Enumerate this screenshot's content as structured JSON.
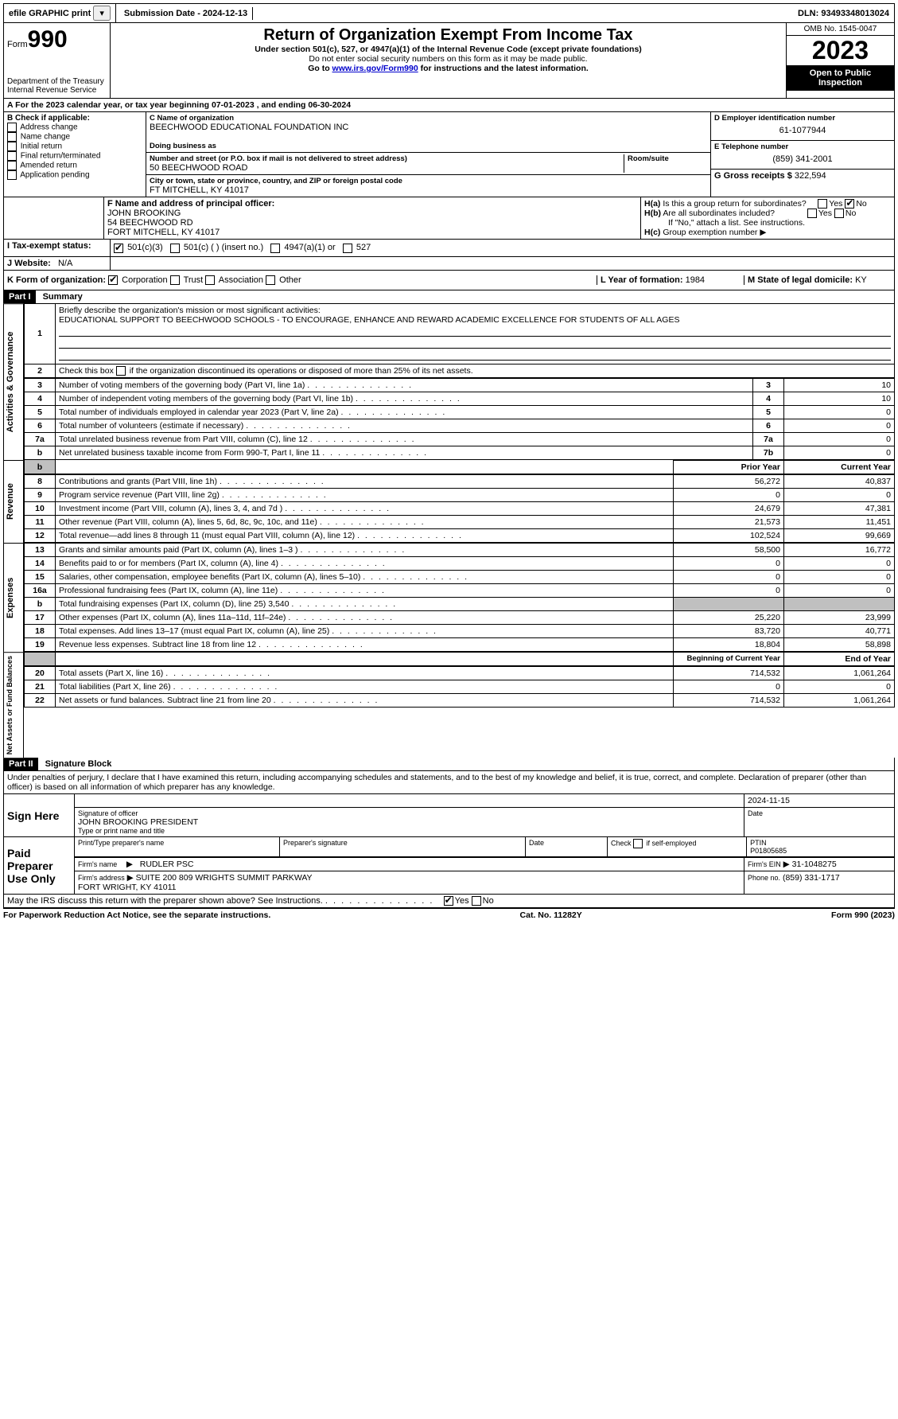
{
  "topbar": {
    "efile": "efile GRAPHIC print",
    "submission": "Submission Date - 2024-12-13",
    "dln": "DLN: 93493348013024"
  },
  "header": {
    "form_word": "Form",
    "form_num": "990",
    "dept": "Department of the Treasury\nInternal Revenue Service",
    "title": "Return of Organization Exempt From Income Tax",
    "subtitle": "Under section 501(c), 527, or 4947(a)(1) of the Internal Revenue Code (except private foundations)",
    "note1": "Do not enter social security numbers on this form as it may be made public.",
    "note2_pre": "Go to ",
    "note2_link": "www.irs.gov/Form990",
    "note2_post": " for instructions and the latest information.",
    "omb": "OMB No. 1545-0047",
    "year": "2023",
    "inspection": "Open to Public Inspection"
  },
  "period": {
    "prefix": "A For the 2023 calendar year, or tax year beginning ",
    "begin": "07-01-2023",
    "mid": " , and ending ",
    "end": "06-30-2024"
  },
  "boxB": {
    "title": "B Check if applicable:",
    "opts": [
      "Address change",
      "Name change",
      "Initial return",
      "Final return/terminated",
      "Amended return",
      "Application pending"
    ]
  },
  "boxC": {
    "name_label": "C Name of organization",
    "name": "BEECHWOOD EDUCATIONAL FOUNDATION INC",
    "dba_label": "Doing business as",
    "street_label": "Number and street (or P.O. box if mail is not delivered to street address)",
    "room_label": "Room/suite",
    "street": "50 BEECHWOOD ROAD",
    "city_label": "City or town, state or province, country, and ZIP or foreign postal code",
    "city": "FT MITCHELL, KY  41017"
  },
  "boxD": {
    "label": "D Employer identification number",
    "ein": "61-1077944"
  },
  "boxE": {
    "label": "E Telephone number",
    "phone": "(859) 341-2001"
  },
  "boxG": {
    "label": "G Gross receipts $",
    "amount": "322,594"
  },
  "boxF": {
    "label": "F Name and address of principal officer:",
    "name": "JOHN BROOKING",
    "addr1": "54 BEECHWOOD RD",
    "addr2": "FORT MITCHELL, KY  41017"
  },
  "boxH": {
    "a_label": "H(a)  Is this a group return for subordinates?",
    "b_label": "H(b)  Are all subordinates included?",
    "b_note": "If \"No,\" attach a list. See instructions.",
    "c_label": "H(c)  Group exemption number ",
    "yes": "Yes",
    "no": "No"
  },
  "boxI": {
    "label": "I   Tax-exempt status:",
    "o1": "501(c)(3)",
    "o2": "501(c) (  ) (insert no.)",
    "o3": "4947(a)(1) or",
    "o4": "527"
  },
  "boxJ": {
    "label": "J   Website:",
    "val": "N/A"
  },
  "boxK": {
    "label": "K Form of organization:",
    "opts": [
      "Corporation",
      "Trust",
      "Association",
      "Other"
    ]
  },
  "boxL": {
    "label": "L Year of formation:",
    "val": "1984"
  },
  "boxM": {
    "label": "M State of legal domicile:",
    "val": "KY"
  },
  "part1": {
    "header": "Part I",
    "title": "Summary",
    "side_ag": "Activities & Governance",
    "side_rev": "Revenue",
    "side_exp": "Expenses",
    "side_net": "Net Assets or Fund Balances",
    "l1_label": "Briefly describe the organization's mission or most significant activities:",
    "l1_text": "EDUCATIONAL SUPPORT TO BEECHWOOD SCHOOLS - TO ENCOURAGE, ENHANCE AND REWARD ACADEMIC EXCELLENCE FOR STUDENTS OF ALL AGES",
    "l2": "Check this box        if the organization discontinued its operations or disposed of more than 25% of its net assets.",
    "rows_ag": [
      {
        "n": "3",
        "t": "Number of voting members of the governing body (Part VI, line 1a)",
        "bn": "3",
        "v": "10"
      },
      {
        "n": "4",
        "t": "Number of independent voting members of the governing body (Part VI, line 1b)",
        "bn": "4",
        "v": "10"
      },
      {
        "n": "5",
        "t": "Total number of individuals employed in calendar year 2023 (Part V, line 2a)",
        "bn": "5",
        "v": "0"
      },
      {
        "n": "6",
        "t": "Total number of volunteers (estimate if necessary)",
        "bn": "6",
        "v": "0"
      },
      {
        "n": "7a",
        "t": "Total unrelated business revenue from Part VIII, column (C), line 12",
        "bn": "7a",
        "v": "0"
      },
      {
        "n": "b",
        "t": "Net unrelated business taxable income from Form 990-T, Part I, line 11",
        "bn": "7b",
        "v": "0"
      }
    ],
    "col_prior": "Prior Year",
    "col_curr": "Current Year",
    "rows_rev": [
      {
        "n": "8",
        "t": "Contributions and grants (Part VIII, line 1h)",
        "p": "56,272",
        "c": "40,837"
      },
      {
        "n": "9",
        "t": "Program service revenue (Part VIII, line 2g)",
        "p": "0",
        "c": "0"
      },
      {
        "n": "10",
        "t": "Investment income (Part VIII, column (A), lines 3, 4, and 7d )",
        "p": "24,679",
        "c": "47,381"
      },
      {
        "n": "11",
        "t": "Other revenue (Part VIII, column (A), lines 5, 6d, 8c, 9c, 10c, and 11e)",
        "p": "21,573",
        "c": "11,451"
      },
      {
        "n": "12",
        "t": "Total revenue—add lines 8 through 11 (must equal Part VIII, column (A), line 12)",
        "p": "102,524",
        "c": "99,669"
      }
    ],
    "rows_exp": [
      {
        "n": "13",
        "t": "Grants and similar amounts paid (Part IX, column (A), lines 1–3 )",
        "p": "58,500",
        "c": "16,772"
      },
      {
        "n": "14",
        "t": "Benefits paid to or for members (Part IX, column (A), line 4)",
        "p": "0",
        "c": "0"
      },
      {
        "n": "15",
        "t": "Salaries, other compensation, employee benefits (Part IX, column (A), lines 5–10)",
        "p": "0",
        "c": "0"
      },
      {
        "n": "16a",
        "t": "Professional fundraising fees (Part IX, column (A), line 11e)",
        "p": "0",
        "c": "0"
      },
      {
        "n": "b",
        "t": "Total fundraising expenses (Part IX, column (D), line 25) 3,540",
        "p": "",
        "c": "",
        "shaded": true
      },
      {
        "n": "17",
        "t": "Other expenses (Part IX, column (A), lines 11a–11d, 11f–24e)",
        "p": "25,220",
        "c": "23,999"
      },
      {
        "n": "18",
        "t": "Total expenses. Add lines 13–17 (must equal Part IX, column (A), line 25)",
        "p": "83,720",
        "c": "40,771"
      },
      {
        "n": "19",
        "t": "Revenue less expenses. Subtract line 18 from line 12",
        "p": "18,804",
        "c": "58,898"
      }
    ],
    "col_beg": "Beginning of Current Year",
    "col_end": "End of Year",
    "rows_net": [
      {
        "n": "20",
        "t": "Total assets (Part X, line 16)",
        "p": "714,532",
        "c": "1,061,264"
      },
      {
        "n": "21",
        "t": "Total liabilities (Part X, line 26)",
        "p": "0",
        "c": "0"
      },
      {
        "n": "22",
        "t": "Net assets or fund balances. Subtract line 21 from line 20",
        "p": "714,532",
        "c": "1,061,264"
      }
    ]
  },
  "part2": {
    "header": "Part II",
    "title": "Signature Block",
    "decl": "Under penalties of perjury, I declare that I have examined this return, including accompanying schedules and statements, and to the best of my knowledge and belief, it is true, correct, and complete. Declaration of preparer (other than officer) is based on all information of which preparer has any knowledge.",
    "sign_here": "Sign Here",
    "sig_officer": "Signature of officer",
    "sig_date": "2024-11-15",
    "officer_name": "JOHN BROOKING PRESIDENT",
    "type_name": "Type or print name and title",
    "date_label": "Date",
    "paid": "Paid Preparer Use Only",
    "prep_name_label": "Print/Type preparer's name",
    "prep_sig_label": "Preparer's signature",
    "self_emp": "Check        if self-employed",
    "ptin_label": "PTIN",
    "ptin": "P01805685",
    "firm_name_label": "Firm's name",
    "firm_name": "RUDLER PSC",
    "firm_ein_label": "Firm's EIN",
    "firm_ein": "31-1048275",
    "firm_addr_label": "Firm's address",
    "firm_addr": "SUITE 200 809 WRIGHTS SUMMIT PARKWAY\nFORT WRIGHT, KY  41011",
    "phone_label": "Phone no.",
    "phone": "(859) 331-1717",
    "discuss": "May the IRS discuss this return with the preparer shown above? See Instructions."
  },
  "footer": {
    "left": "For Paperwork Reduction Act Notice, see the separate instructions.",
    "mid": "Cat. No. 11282Y",
    "right": "Form 990 (2023)"
  }
}
